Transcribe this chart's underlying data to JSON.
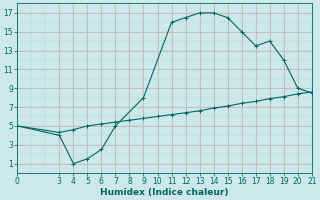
{
  "xlabel": "Humidex (Indice chaleur)",
  "background_color": "#cce8e8",
  "grid_color": "#b0d4d4",
  "line_color": "#006666",
  "xlim": [
    0,
    21
  ],
  "ylim": [
    0,
    18
  ],
  "xticks": [
    0,
    3,
    4,
    5,
    6,
    7,
    8,
    9,
    10,
    11,
    12,
    13,
    14,
    15,
    16,
    17,
    18,
    19,
    20,
    21
  ],
  "yticks": [
    1,
    3,
    5,
    7,
    9,
    11,
    13,
    15,
    17
  ],
  "series1_x": [
    0,
    3,
    4,
    5,
    6,
    7,
    9,
    11,
    12,
    13,
    14,
    15,
    16,
    17,
    18,
    19,
    20,
    21
  ],
  "series1_y": [
    5,
    4,
    1.0,
    1.5,
    2.5,
    5.0,
    8.0,
    16.0,
    16.5,
    17.0,
    17.0,
    16.5,
    15.0,
    13.5,
    14.0,
    12.0,
    9.0,
    8.5
  ],
  "series2_x": [
    0,
    3,
    4,
    5,
    6,
    7,
    8,
    9,
    10,
    11,
    12,
    13,
    14,
    15,
    16,
    17,
    18,
    19,
    20,
    21
  ],
  "series2_y": [
    5,
    4.3,
    4.6,
    5.0,
    5.2,
    5.4,
    5.6,
    5.8,
    6.0,
    6.2,
    6.4,
    6.6,
    6.9,
    7.1,
    7.4,
    7.6,
    7.9,
    8.1,
    8.4,
    8.6
  ],
  "marker": "+",
  "marker_size": 3,
  "marker_edge_width": 0.7,
  "line_width": 0.8,
  "tick_fontsize": 5.5,
  "xlabel_fontsize": 6.5
}
